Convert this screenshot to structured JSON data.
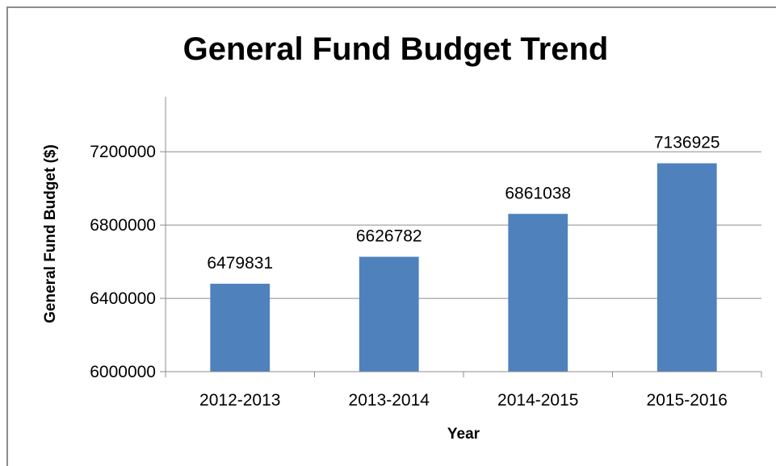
{
  "chart_data": {
    "type": "bar",
    "title": "General Fund Budget Trend",
    "xlabel": "Year",
    "ylabel": "General Fund Budget ($)",
    "categories": [
      "2012-2013",
      "2013-2014",
      "2014-2015",
      "2015-2016"
    ],
    "values": [
      6479831,
      6626782,
      6861038,
      7136925
    ],
    "data_labels": [
      "6479831",
      "6626782",
      "6861038",
      "7136925"
    ],
    "ylim": [
      6000000,
      7500000
    ],
    "yticks": [
      6000000,
      6400000,
      6800000,
      7200000
    ],
    "ytick_labels": [
      "6000000",
      "6400000",
      "6800000",
      "7200000"
    ],
    "grid": true,
    "legend": "none",
    "bar_color": "#4f81bd"
  }
}
